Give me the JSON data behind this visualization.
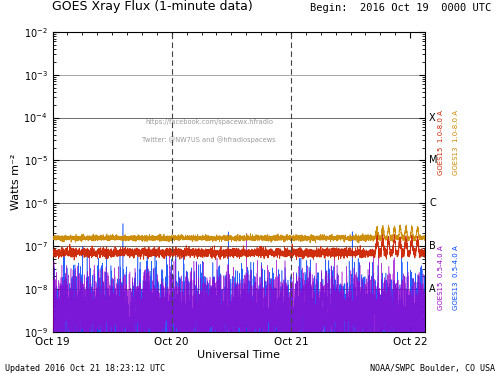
{
  "title_left": "GOES Xray Flux (1-minute data)",
  "title_right": "Begin:  2016 Oct 19  0000 UTC",
  "xlabel": "Universal Time",
  "ylabel": "Watts m⁻²",
  "footer_left": "Updated 2016 Oct 21 18:23:12 UTC",
  "footer_right": "NOAA/SWPC Boulder, CO USA",
  "watermark_line1": "https://facebook.com/spacewx.hfradio",
  "watermark_line2": "Twitter: @NW7US and @hfradiospacews",
  "ylim_log_min": -9,
  "ylim_log_max": -2,
  "xlim_days": [
    0,
    3.125
  ],
  "x_ticks_days": [
    0,
    1,
    2,
    3
  ],
  "x_tick_labels": [
    "Oct 19",
    "Oct 20",
    "Oct 21",
    "Oct 22"
  ],
  "flare_class_labels": [
    "X",
    "M",
    "C",
    "B",
    "A"
  ],
  "flare_class_yvals": [
    0.0001,
    1e-05,
    1e-06,
    1e-07,
    1e-08
  ],
  "color_goes15_long": "#cc2200",
  "color_goes13_long": "#cc8800",
  "color_goes15_short": "#9900cc",
  "color_goes13_short": "#0044ff",
  "bg_color": "#ffffff",
  "vline_color": "#555555",
  "dashed_vline_days": [
    1.0,
    2.0
  ],
  "seed": 42
}
